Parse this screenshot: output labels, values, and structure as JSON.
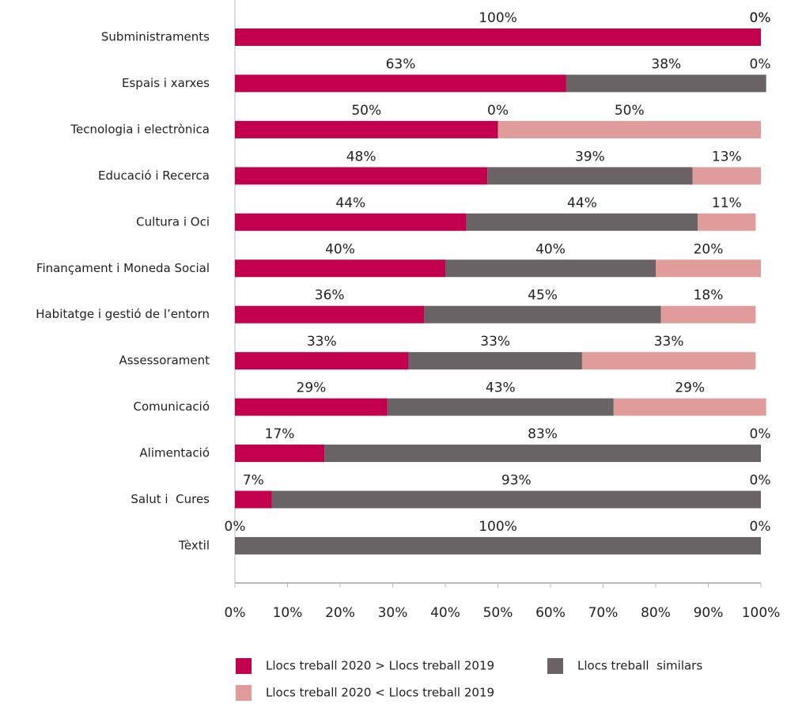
{
  "chart_data": {
    "type": "stacked-barh",
    "categories": [
      "Subministraments",
      "Espais i xarxes",
      "Tecnologia i electrònica",
      "Educació i Recerca",
      "Cultura i Oci",
      "Finançament i Moneda Social",
      "Habitatge i gestió de l’entorn",
      "Assessorament",
      "Comunicació",
      "Alimentació",
      "Salut i  Cures",
      "Tèxtil"
    ],
    "series": [
      {
        "name": "Llocs treball 2020 > Llocs treball 2019",
        "color": "#c2004e",
        "values": [
          100,
          63,
          50,
          48,
          44,
          40,
          36,
          33,
          29,
          17,
          7,
          0
        ],
        "value_labels": [
          "100%",
          "63%",
          "50%",
          "48%",
          "44%",
          "40%",
          "36%",
          "33%",
          "29%",
          "17%",
          "7%",
          "0%"
        ]
      },
      {
        "name": "Llocs treball  similars",
        "color": "#6a6365",
        "values": [
          0,
          38,
          0,
          39,
          44,
          40,
          45,
          33,
          43,
          83,
          93,
          100
        ],
        "value_labels": [
          "0%",
          "38%",
          "0%",
          "39%",
          "44%",
          "40%",
          "45%",
          "33%",
          "43%",
          "83%",
          "93%",
          "100%"
        ]
      },
      {
        "name": "Llocs treball 2020 < Llocs treball 2019",
        "color": "#e09c9a",
        "values": [
          0,
          0,
          50,
          13,
          11,
          20,
          18,
          33,
          29,
          0,
          0,
          0
        ],
        "value_labels": [
          "0%",
          "0%",
          "50%",
          "13%",
          "11%",
          "20%",
          "18%",
          "33%",
          "29%",
          "0%",
          "0%",
          "0%"
        ]
      }
    ],
    "xlim": [
      0,
      100
    ],
    "xticks": [
      {
        "value": 0,
        "label": "0%"
      },
      {
        "value": 10,
        "label": "10%"
      },
      {
        "value": 20,
        "label": "20%"
      },
      {
        "value": 30,
        "label": "30%"
      },
      {
        "value": 40,
        "label": "40%"
      },
      {
        "value": 50,
        "label": "50%"
      },
      {
        "value": 60,
        "label": "60%"
      },
      {
        "value": 70,
        "label": "70%"
      },
      {
        "value": 80,
        "label": "80%"
      },
      {
        "value": 90,
        "label": "90%"
      },
      {
        "value": 100,
        "label": "100%"
      }
    ]
  }
}
